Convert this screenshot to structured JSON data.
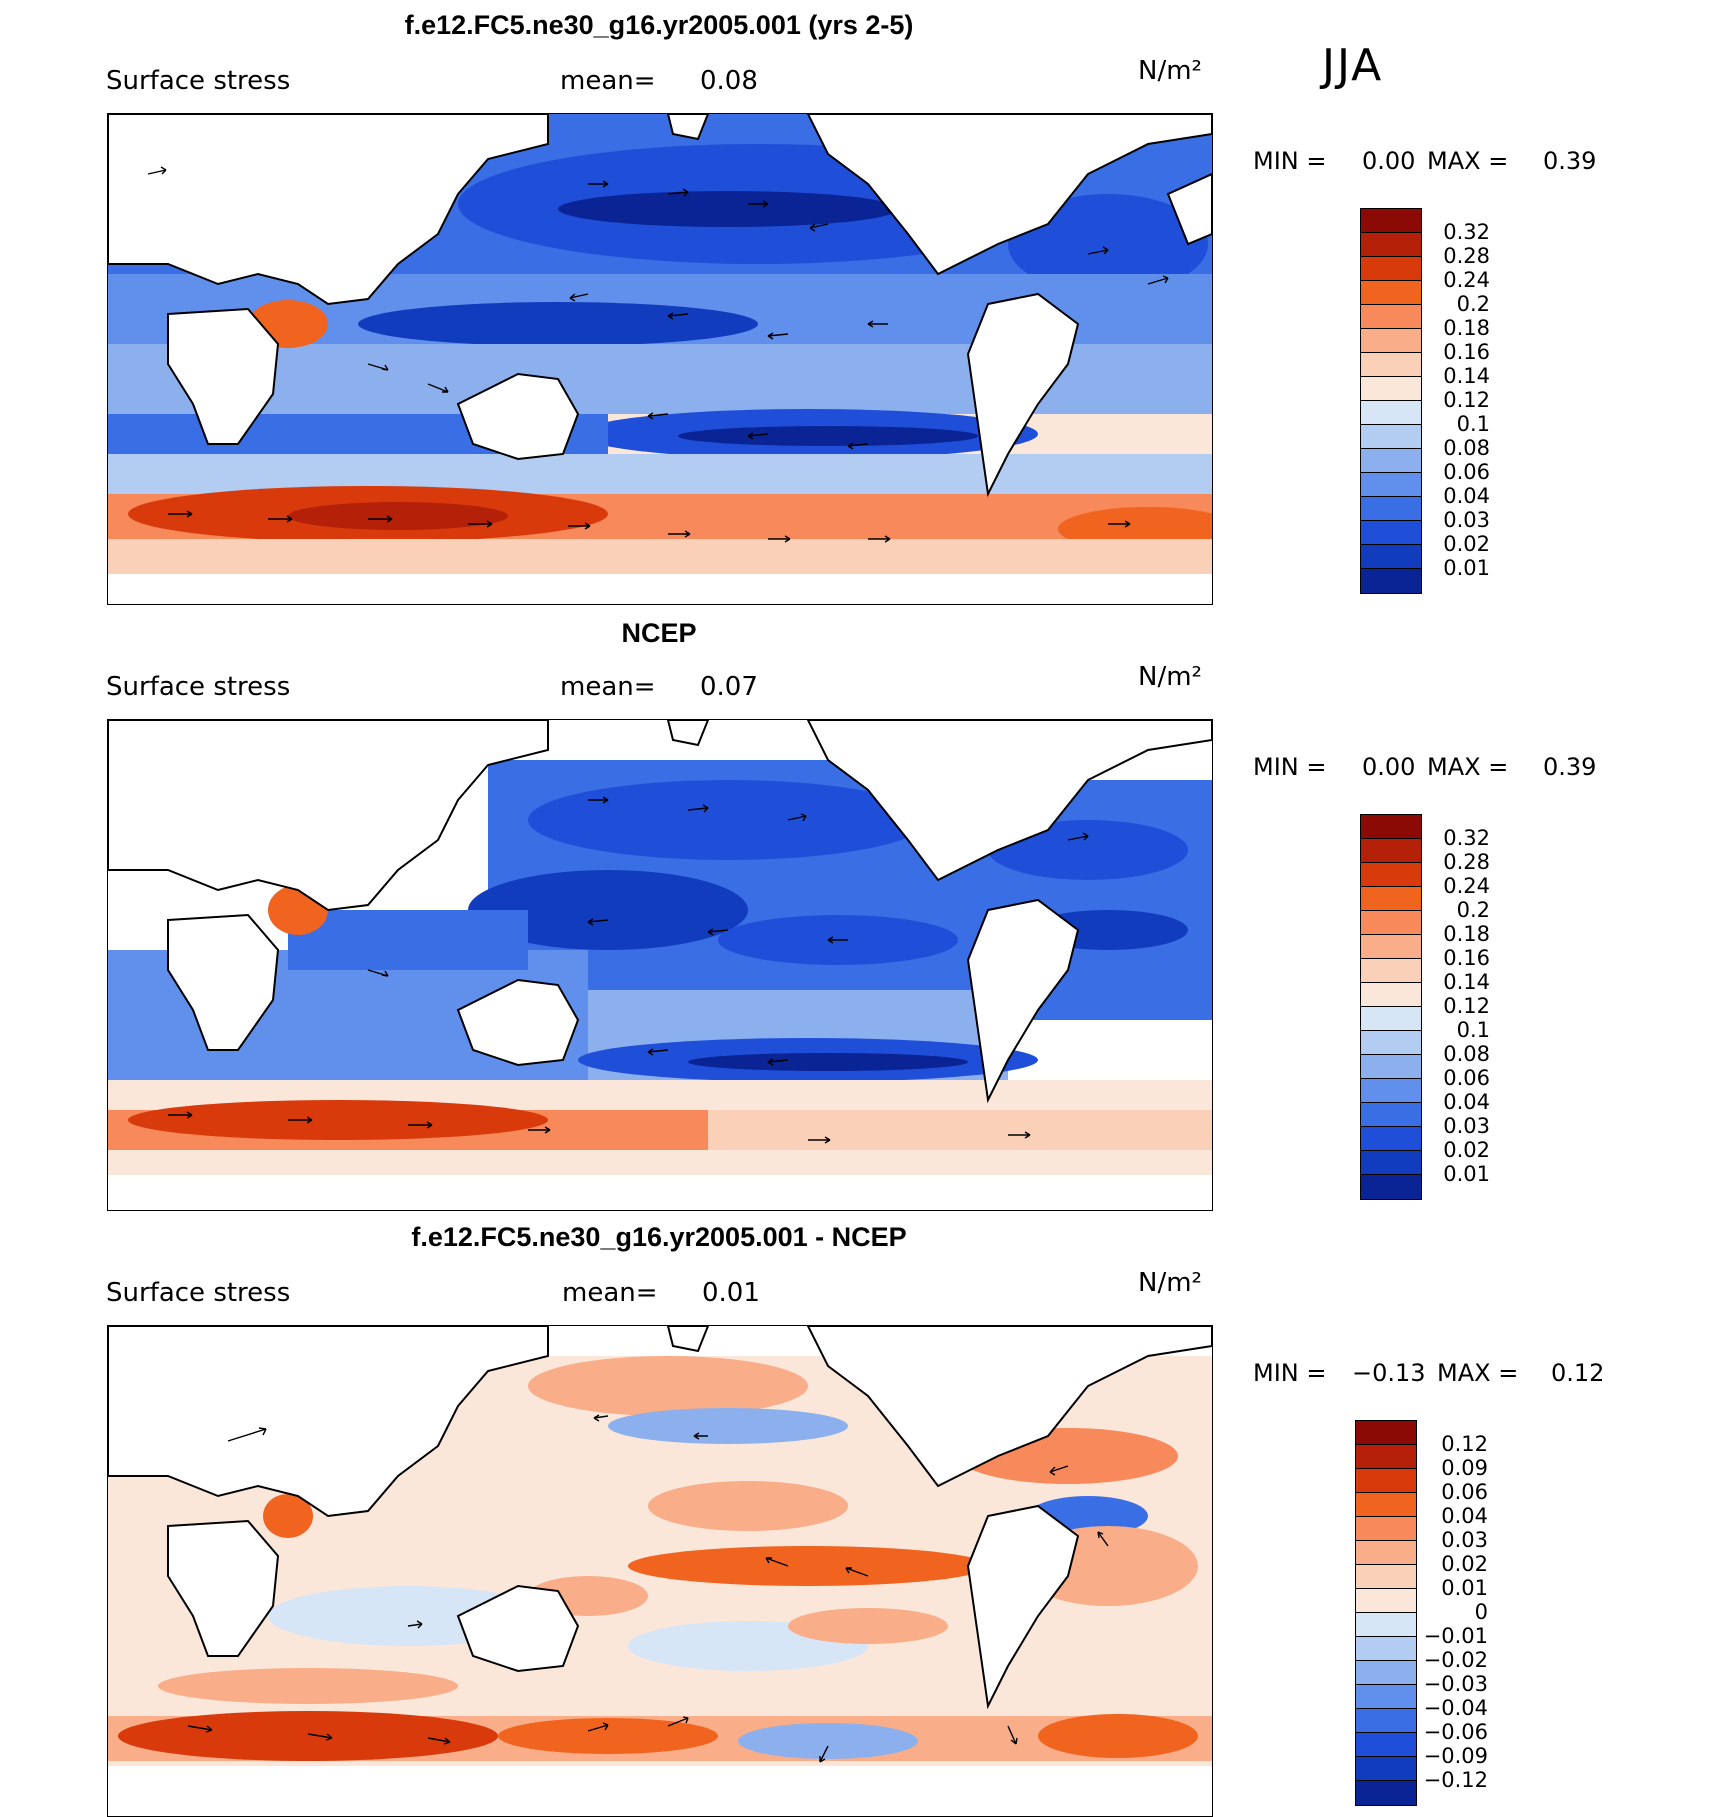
{
  "season": "JJA",
  "panels": [
    {
      "title": "f.e12.FC5.ne30_g16.yr2005.001 (yrs 2-5)",
      "variable": "Surface stress",
      "mean_label": "mean=",
      "mean_value": "0.08",
      "units": "N/m²",
      "min_label": "MIN =",
      "min_value": "0.00",
      "max_label": "MAX =",
      "max_value": "0.39",
      "colorbar_labels": [
        "0.32",
        "0.28",
        "0.24",
        "0.2",
        "0.18",
        "0.16",
        "0.14",
        "0.12",
        "0.1",
        "0.08",
        "0.06",
        "0.04",
        "0.03",
        "0.02",
        "0.01"
      ],
      "colorbar_colors": [
        "#8b0a05",
        "#b52008",
        "#d83a0c",
        "#f0641f",
        "#f7895a",
        "#f9ad88",
        "#fbd0b8",
        "#fbe7da",
        "#d6e6f6",
        "#b3cdf2",
        "#8cb0ee",
        "#6090ec",
        "#3a6ee5",
        "#1f4fd8",
        "#123cbe",
        "#0a2495"
      ]
    },
    {
      "title": "NCEP",
      "variable": "Surface stress",
      "mean_label": "mean=",
      "mean_value": "0.07",
      "units": "N/m²",
      "min_label": "MIN =",
      "min_value": "0.00",
      "max_label": "MAX =",
      "max_value": "0.39",
      "colorbar_labels": [
        "0.32",
        "0.28",
        "0.24",
        "0.2",
        "0.18",
        "0.16",
        "0.14",
        "0.12",
        "0.1",
        "0.08",
        "0.06",
        "0.04",
        "0.03",
        "0.02",
        "0.01"
      ],
      "colorbar_colors": [
        "#8b0a05",
        "#b52008",
        "#d83a0c",
        "#f0641f",
        "#f7895a",
        "#f9ad88",
        "#fbd0b8",
        "#fbe7da",
        "#d6e6f6",
        "#b3cdf2",
        "#8cb0ee",
        "#6090ec",
        "#3a6ee5",
        "#1f4fd8",
        "#123cbe",
        "#0a2495"
      ]
    },
    {
      "title": "f.e12.FC5.ne30_g16.yr2005.001 - NCEP",
      "variable": "Surface stress",
      "mean_label": "mean=",
      "mean_value": "0.01",
      "units": "N/m²",
      "min_label": "MIN =",
      "min_value": "−0.13",
      "max_label": "MAX =",
      "max_value": "0.12",
      "colorbar_labels": [
        "0.12",
        "0.09",
        "0.06",
        "0.04",
        "0.03",
        "0.02",
        "0.01",
        "0",
        "−0.01",
        "−0.02",
        "−0.03",
        "−0.04",
        "−0.06",
        "−0.09",
        "−0.12"
      ],
      "colorbar_colors": [
        "#8b0a05",
        "#b52008",
        "#d83a0c",
        "#f0641f",
        "#f7895a",
        "#f9ad88",
        "#fbd0b8",
        "#fbe7da",
        "#d6e6f6",
        "#b3cdf2",
        "#8cb0ee",
        "#6090ec",
        "#3a6ee5",
        "#1f4fd8",
        "#123cbe",
        "#0a2495"
      ]
    }
  ]
}
